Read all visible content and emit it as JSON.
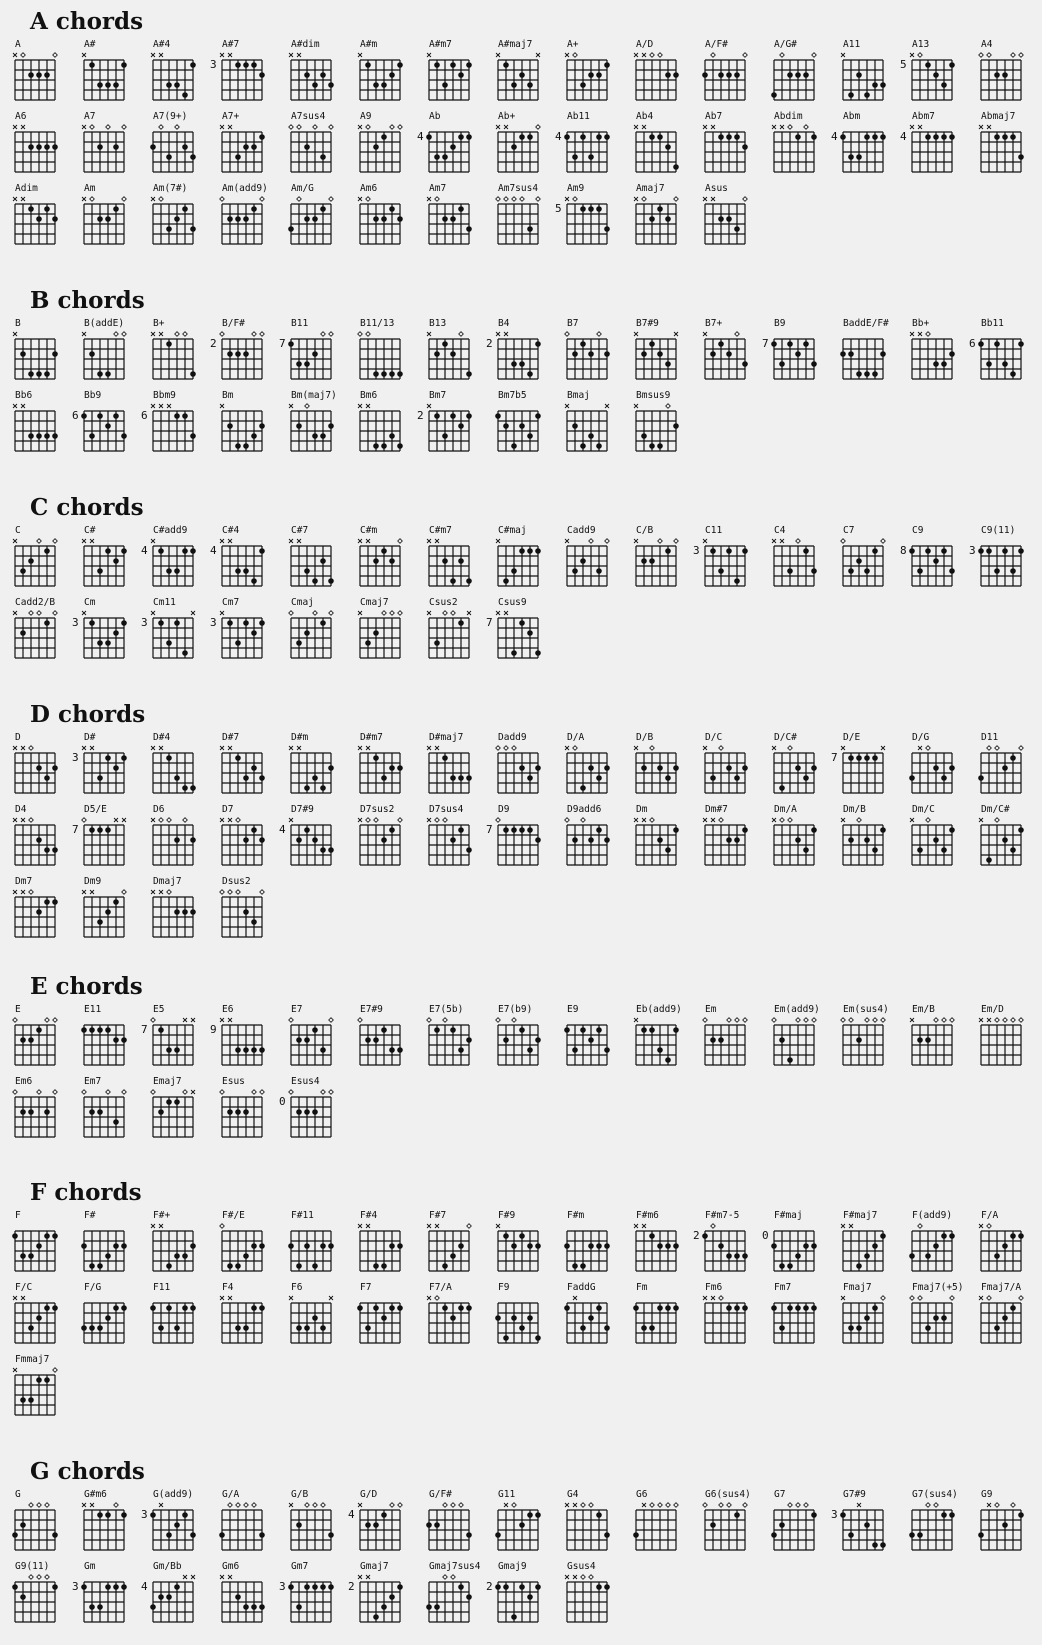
{
  "notation": {
    "muted": "x",
    "open": "o"
  },
  "colors": {
    "background": "#f0f0f0",
    "ink": "#111111"
  },
  "sections": [
    {
      "title": "A chords",
      "chords": [
        {
          "name": "A",
          "frets": "xo222o"
        },
        {
          "name": "A#",
          "frets": "x13331"
        },
        {
          "name": "A#4",
          "frets": "xx3341"
        },
        {
          "name": "A#7",
          "frets": "xx1112",
          "base": "3"
        },
        {
          "name": "A#dim",
          "frets": "xx2323"
        },
        {
          "name": "A#m",
          "frets": "x13321"
        },
        {
          "name": "A#m7",
          "frets": "x13121"
        },
        {
          "name": "A#maj7",
          "frets": "x1323x"
        },
        {
          "name": "A+",
          "frets": "xo3221"
        },
        {
          "name": "A/D",
          "frets": "xxoo22"
        },
        {
          "name": "A/F#",
          "frets": "2o222o"
        },
        {
          "name": "A/G#",
          "frets": "4o222o"
        },
        {
          "name": "A11",
          "frets": "x42433"
        },
        {
          "name": "A13",
          "frets": "xo1231",
          "base": "5"
        },
        {
          "name": "A4",
          "frets": "oo22oo"
        },
        {
          "name": "A6",
          "frets": "xx2222"
        },
        {
          "name": "A7",
          "frets": "xo2o2o"
        },
        {
          "name": "A7(9+)",
          "frets": "2o3o23"
        },
        {
          "name": "A7+",
          "frets": "xx3221"
        },
        {
          "name": "A7sus4",
          "frets": "oo2o3o"
        },
        {
          "name": "A9",
          "frets": "xo21oo"
        },
        {
          "name": "Ab",
          "frets": "133211",
          "base": "4"
        },
        {
          "name": "Ab+",
          "frets": "xx211o"
        },
        {
          "name": "Ab11",
          "frets": "131311",
          "base": "4"
        },
        {
          "name": "Ab4",
          "frets": "xx1124"
        },
        {
          "name": "Ab7",
          "frets": "xx1112"
        },
        {
          "name": "Abdim",
          "frets": "xxo1o1"
        },
        {
          "name": "Abm",
          "frets": "133111",
          "base": "4"
        },
        {
          "name": "Abm7",
          "frets": "xx1111",
          "base": "4"
        },
        {
          "name": "Abmaj7",
          "frets": "xx1113"
        },
        {
          "name": "Adim",
          "frets": "xx1212"
        },
        {
          "name": "Am",
          "frets": "xo221o"
        },
        {
          "name": "Am(7#)",
          "frets": "xo3213"
        },
        {
          "name": "Am(add9)",
          "frets": "o2221o"
        },
        {
          "name": "Am/G",
          "frets": "3o221o"
        },
        {
          "name": "Am6",
          "frets": "xo2212"
        },
        {
          "name": "Am7",
          "frets": "xo2213"
        },
        {
          "name": "Am7sus4",
          "frets": "oooo3o"
        },
        {
          "name": "Am9",
          "frets": "xo1113",
          "base": "5"
        },
        {
          "name": "Amaj7",
          "frets": "xo212o"
        },
        {
          "name": "Asus",
          "frets": "xx223o"
        }
      ]
    },
    {
      "title": "B chords",
      "chords": [
        {
          "name": "B",
          "frets": "x24442"
        },
        {
          "name": "B(addE)",
          "frets": "x244oo"
        },
        {
          "name": "B+",
          "frets": "xx1oo4"
        },
        {
          "name": "B/F#",
          "frets": "o222oo",
          "base": "2"
        },
        {
          "name": "B11",
          "frets": "1332oo",
          "base": "7"
        },
        {
          "name": "B11/13",
          "frets": "oo4444"
        },
        {
          "name": "B13",
          "frets": "x212o4"
        },
        {
          "name": "B4",
          "frets": "xx3341",
          "base": "2"
        },
        {
          "name": "B7",
          "frets": "o212o2"
        },
        {
          "name": "B7#9",
          "frets": "x2123x"
        },
        {
          "name": "B7+",
          "frets": "x212o3"
        },
        {
          "name": "B9",
          "frets": "131213",
          "base": "7"
        },
        {
          "name": "BaddE/F#",
          "frets": "224442"
        },
        {
          "name": "Bb+",
          "frets": "xxo332"
        },
        {
          "name": "Bb11",
          "frets": "131341",
          "base": "6"
        },
        {
          "name": "Bb6",
          "frets": "xx3333"
        },
        {
          "name": "Bb9",
          "frets": "131213",
          "base": "6"
        },
        {
          "name": "Bbm9",
          "frets": "xxx113",
          "base": "6"
        },
        {
          "name": "Bm",
          "frets": "x24432"
        },
        {
          "name": "Bm(maj7)",
          "frets": "x2o332"
        },
        {
          "name": "Bm6",
          "frets": "xx4434"
        },
        {
          "name": "Bm7",
          "frets": "x13121",
          "base": "2"
        },
        {
          "name": "Bm7b5",
          "frets": "124231"
        },
        {
          "name": "Bmaj",
          "frets": "x2434x"
        },
        {
          "name": "Bmsus9",
          "frets": "x344o2"
        }
      ]
    },
    {
      "title": "C chords",
      "chords": [
        {
          "name": "C",
          "frets": "x32o1o"
        },
        {
          "name": "C#",
          "frets": "xx3121"
        },
        {
          "name": "C#add9",
          "frets": "x13311",
          "base": "4"
        },
        {
          "name": "C#4",
          "frets": "xx3341",
          "base": "4"
        },
        {
          "name": "C#7",
          "frets": "xx3424"
        },
        {
          "name": "C#m",
          "frets": "xx212o"
        },
        {
          "name": "C#m7",
          "frets": "xx2424"
        },
        {
          "name": "C#maj",
          "frets": "x43111"
        },
        {
          "name": "Cadd9",
          "frets": "x32o3o"
        },
        {
          "name": "C/B",
          "frets": "x22o1o"
        },
        {
          "name": "C11",
          "frets": "x13141",
          "base": "3"
        },
        {
          "name": "C4",
          "frets": "xx3o13"
        },
        {
          "name": "C7",
          "frets": "o3231o"
        },
        {
          "name": "C9",
          "frets": "131213",
          "base": "8"
        },
        {
          "name": "C9(11)",
          "frets": "113131",
          "base": "3"
        },
        {
          "name": "Cadd2/B",
          "frets": "x2oo1o"
        },
        {
          "name": "Cm",
          "frets": "x13321",
          "base": "3"
        },
        {
          "name": "Cm11",
          "frets": "x1314x",
          "base": "3"
        },
        {
          "name": "Cm7",
          "frets": "x13121",
          "base": "3"
        },
        {
          "name": "Cmaj",
          "frets": "o32o1o"
        },
        {
          "name": "Cmaj7",
          "frets": "x32ooo"
        },
        {
          "name": "Csus2",
          "frets": "x3oo1x"
        },
        {
          "name": "Csus9",
          "frets": "xx4124",
          "base": "7"
        }
      ]
    },
    {
      "title": "D chords",
      "chords": [
        {
          "name": "D",
          "frets": "xxo232"
        },
        {
          "name": "D#",
          "frets": "xx3121",
          "base": "3"
        },
        {
          "name": "D#4",
          "frets": "xx1344"
        },
        {
          "name": "D#7",
          "frets": "xx1323"
        },
        {
          "name": "D#m",
          "frets": "xx4342"
        },
        {
          "name": "D#m7",
          "frets": "xx1322"
        },
        {
          "name": "D#maj7",
          "frets": "xx1333"
        },
        {
          "name": "Dadd9",
          "frets": "ooo232"
        },
        {
          "name": "D/A",
          "frets": "xo4232"
        },
        {
          "name": "D/B",
          "frets": "x2o232"
        },
        {
          "name": "D/C",
          "frets": "x3o232"
        },
        {
          "name": "D/C#",
          "frets": "x4o232"
        },
        {
          "name": "D/E",
          "frets": "x1111x",
          "base": "7"
        },
        {
          "name": "D/G",
          "frets": "3xo232"
        },
        {
          "name": "D11",
          "frets": "3oo21o"
        },
        {
          "name": "D4",
          "frets": "xxo233"
        },
        {
          "name": "D5/E",
          "frets": "o111xx",
          "base": "7"
        },
        {
          "name": "D6",
          "frets": "xoo2o2"
        },
        {
          "name": "D7",
          "frets": "xxo212"
        },
        {
          "name": "D7#9",
          "frets": "x21233",
          "base": "4"
        },
        {
          "name": "D7sus2",
          "frets": "xoo21o"
        },
        {
          "name": "D7sus4",
          "frets": "xoo213"
        },
        {
          "name": "D9",
          "frets": "o11112",
          "base": "7"
        },
        {
          "name": "D9add6",
          "frets": "o2o212"
        },
        {
          "name": "Dm",
          "frets": "xxo231"
        },
        {
          "name": "Dm#7",
          "frets": "xxo221"
        },
        {
          "name": "Dm/A",
          "frets": "xoo231"
        },
        {
          "name": "Dm/B",
          "frets": "x2o231"
        },
        {
          "name": "Dm/C",
          "frets": "x3o231"
        },
        {
          "name": "Dm/C#",
          "frets": "x4o231"
        },
        {
          "name": "Dm7",
          "frets": "xxo211"
        },
        {
          "name": "Dm9",
          "frets": "xx321o"
        },
        {
          "name": "Dmaj7",
          "frets": "xxo222"
        },
        {
          "name": "Dsus2",
          "frets": "ooo23o"
        }
      ]
    },
    {
      "title": "E chords",
      "chords": [
        {
          "name": "E",
          "frets": "o221oo"
        },
        {
          "name": "E11",
          "frets": "111122"
        },
        {
          "name": "E5",
          "frets": "o133xx",
          "base": "7"
        },
        {
          "name": "E6",
          "frets": "xx3333",
          "base": "9"
        },
        {
          "name": "E7",
          "frets": "o2213o"
        },
        {
          "name": "E7#9",
          "frets": "o22133"
        },
        {
          "name": "E7(5b)",
          "frets": "o1o132"
        },
        {
          "name": "E7(b9)",
          "frets": "o2o132"
        },
        {
          "name": "E9",
          "frets": "131213"
        },
        {
          "name": "Eb(add9)",
          "frets": "x11341"
        },
        {
          "name": "Em",
          "frets": "o22ooo"
        },
        {
          "name": "Em(add9)",
          "frets": "o24ooo"
        },
        {
          "name": "Em(sus4)",
          "frets": "oo2ooo"
        },
        {
          "name": "Em/B",
          "frets": "x22ooo"
        },
        {
          "name": "Em/D",
          "frets": "xxoooo"
        },
        {
          "name": "Em6",
          "frets": "o22o2o"
        },
        {
          "name": "Em7",
          "frets": "o22o3o"
        },
        {
          "name": "Emaj7",
          "frets": "o211ox"
        },
        {
          "name": "Esus",
          "frets": "o222oo"
        },
        {
          "name": "Esus4",
          "frets": "o222oo",
          "base": "0"
        }
      ]
    },
    {
      "title": "F chords",
      "chords": [
        {
          "name": "F",
          "frets": "133211"
        },
        {
          "name": "F#",
          "frets": "244322"
        },
        {
          "name": "F#+",
          "frets": "xx4332"
        },
        {
          "name": "F#/E",
          "frets": "o44322"
        },
        {
          "name": "F#11",
          "frets": "242422"
        },
        {
          "name": "F#4",
          "frets": "xx4422"
        },
        {
          "name": "F#7",
          "frets": "xx432o"
        },
        {
          "name": "F#9",
          "frets": "x12122"
        },
        {
          "name": "F#m",
          "frets": "244222"
        },
        {
          "name": "F#m6",
          "frets": "xx1222"
        },
        {
          "name": "F#m7-5",
          "frets": "1o2333",
          "base": "2"
        },
        {
          "name": "F#maj",
          "frets": "244322",
          "base": "0"
        },
        {
          "name": "F#maj7",
          "frets": "xx4321"
        },
        {
          "name": "F(add9)",
          "frets": "3o3211"
        },
        {
          "name": "F/A",
          "frets": "xo3211"
        },
        {
          "name": "F/C",
          "frets": "xx3211"
        },
        {
          "name": "F/G",
          "frets": "333211"
        },
        {
          "name": "F11",
          "frets": "131311"
        },
        {
          "name": "F4",
          "frets": "xx3311"
        },
        {
          "name": "F6",
          "frets": "x3323x"
        },
        {
          "name": "F7",
          "frets": "131211"
        },
        {
          "name": "F7/A",
          "frets": "xo1211"
        },
        {
          "name": "F9",
          "frets": "242324"
        },
        {
          "name": "FaddG",
          "frets": "1x3213"
        },
        {
          "name": "Fm",
          "frets": "133111"
        },
        {
          "name": "Fm6",
          "frets": "xxo111"
        },
        {
          "name": "Fm7",
          "frets": "131111"
        },
        {
          "name": "Fmaj7",
          "frets": "x3321o"
        },
        {
          "name": "Fmaj7(+5)",
          "frets": "oo322o"
        },
        {
          "name": "Fmaj7/A",
          "frets": "xo321o"
        },
        {
          "name": "Fmmaj7",
          "frets": "x3311o"
        }
      ]
    },
    {
      "title": "G chords",
      "chords": [
        {
          "name": "G",
          "frets": "32ooo3"
        },
        {
          "name": "G#m6",
          "frets": "xx11o1"
        },
        {
          "name": "G(add9)",
          "frets": "1x3213",
          "base": "3"
        },
        {
          "name": "G/A",
          "frets": "3oooo3"
        },
        {
          "name": "G/B",
          "frets": "x2ooo3"
        },
        {
          "name": "G/D",
          "frets": "x221oo",
          "base": "4"
        },
        {
          "name": "G/F#",
          "frets": "22ooo3"
        },
        {
          "name": "G11",
          "frets": "3xo211"
        },
        {
          "name": "G4",
          "frets": "xxoo13"
        },
        {
          "name": "G6",
          "frets": "3xoooo"
        },
        {
          "name": "G6(sus4)",
          "frets": "o2oo1o"
        },
        {
          "name": "G7",
          "frets": "32ooo1"
        },
        {
          "name": "G7#9",
          "frets": "13x244",
          "base": "3"
        },
        {
          "name": "G7(sus4)",
          "frets": "33oo11"
        },
        {
          "name": "G9",
          "frets": "3xo2o1"
        },
        {
          "name": "G9(11)",
          "frets": "12ooo1"
        },
        {
          "name": "Gm",
          "frets": "133111",
          "base": "3"
        },
        {
          "name": "Gm/Bb",
          "frets": "3221xx",
          "base": "4"
        },
        {
          "name": "Gm6",
          "frets": "xx2333"
        },
        {
          "name": "Gm7",
          "frets": "131111",
          "base": "3"
        },
        {
          "name": "Gmaj7",
          "frets": "xx4321",
          "base": "2"
        },
        {
          "name": "Gmaj7sus4",
          "frets": "33oo12"
        },
        {
          "name": "Gmaj9",
          "frets": "114121",
          "base": "2"
        },
        {
          "name": "Gsus4",
          "frets": "xxoo11"
        }
      ]
    }
  ]
}
